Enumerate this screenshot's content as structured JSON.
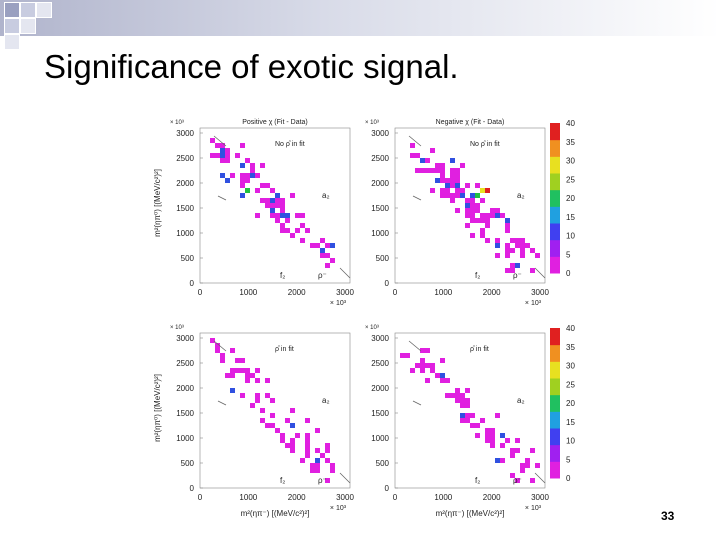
{
  "slide": {
    "title": "Significance of exotic signal.",
    "page_number": "33"
  },
  "figure": {
    "panels": [
      {
        "header": "Positive χ (Fit - Data)",
        "label_top": "No ρ̂ in fit",
        "label_a2": "a₂",
        "label_f2": "f₂",
        "label_rho": "ρ⁻"
      },
      {
        "header": "Negative χ (Fit - Data)",
        "label_top": "No ρ̂ in fit",
        "label_a2": "a₂",
        "label_f2": "f₂",
        "label_rho": "ρ⁻"
      },
      {
        "header": "",
        "label_top": "ρ̂ in fit",
        "label_a2": "a₂",
        "label_f2": "f₂",
        "label_rho": "ρ⁻"
      },
      {
        "header": "",
        "label_top": "ρ̂ in fit",
        "label_a2": "a₂",
        "label_f2": "f₂",
        "label_rho": "ρ⁻"
      }
    ],
    "ylabel": "m²(ηπ⁰) [(MeV/c²)²]",
    "xlabel": "m²(ηπ⁻) [(MeV/c²)²]",
    "axis_exp": "× 10³",
    "yticks": [
      "0",
      "500",
      "1000",
      "1500",
      "2000",
      "2500",
      "3000"
    ],
    "xticks": [
      "0",
      "1000",
      "2000",
      "3000"
    ],
    "colorbar_ticks": [
      "0",
      "5",
      "10",
      "15",
      "20",
      "25",
      "30",
      "35",
      "40"
    ],
    "colors": {
      "magenta": "#e020e0",
      "blue": "#3050e0",
      "green": "#20c040",
      "yellow": "#e8e020",
      "red": "#e02020"
    }
  }
}
